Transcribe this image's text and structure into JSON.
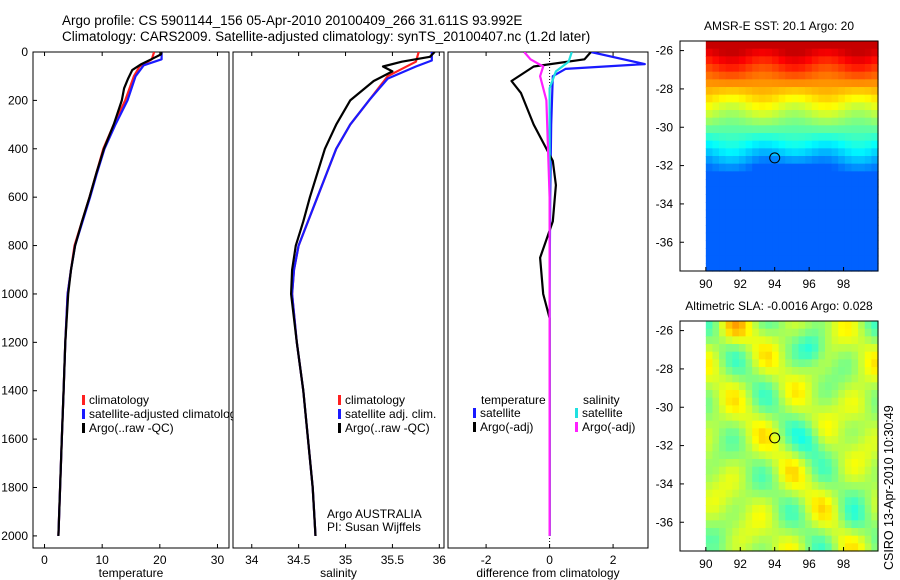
{
  "title_line1": "Argo profile: CS 5901144_156 05-Apr-2010 20100409_266 31.611S 93.992E",
  "title_line2": "Climatology: CARS2009. Satellite-adjusted climatology: synTS_20100407.nc (1.2d later)",
  "signature": "CSIRO 13-Apr-2010 10:30:49",
  "colors": {
    "climatology": "#ff2020",
    "satellite": "#1a1aff",
    "argo": "#000000",
    "salinity_satellite": "#20e0e0",
    "salinity_argo": "#ff20ff"
  },
  "chart_data": [
    {
      "id": "temperature",
      "type": "line",
      "xlabel": "temperature",
      "ylabel": "",
      "xlim": [
        -2,
        32
      ],
      "ylim": [
        2050,
        0
      ],
      "xticks": [
        0,
        10,
        20,
        30
      ],
      "yticks": [
        0,
        200,
        400,
        600,
        800,
        1000,
        1200,
        1400,
        1600,
        1800,
        2000
      ],
      "legend": [
        "climatology",
        "satellite-adjusted climatology",
        "Argo(..raw -QC)"
      ],
      "series": [
        {
          "name": "climatology",
          "color": "#ff2020",
          "points": [
            [
              19.0,
              0
            ],
            [
              18.6,
              30
            ],
            [
              16.5,
              60
            ],
            [
              15.5,
              100
            ],
            [
              14.0,
              200
            ],
            [
              12.0,
              300
            ],
            [
              10.2,
              400
            ],
            [
              9.0,
              500
            ],
            [
              7.8,
              600
            ],
            [
              6.5,
              700
            ],
            [
              5.2,
              800
            ],
            [
              4.6,
              900
            ],
            [
              4.0,
              1000
            ],
            [
              3.6,
              1200
            ],
            [
              3.3,
              1400
            ],
            [
              3.0,
              1600
            ],
            [
              2.7,
              1800
            ],
            [
              2.4,
              2000
            ]
          ]
        },
        {
          "name": "satellite-adjusted climatology",
          "color": "#1a1aff",
          "points": [
            [
              20.3,
              0
            ],
            [
              20.3,
              30
            ],
            [
              17.2,
              55
            ],
            [
              15.8,
              100
            ],
            [
              14.4,
              200
            ],
            [
              12.3,
              300
            ],
            [
              10.4,
              400
            ],
            [
              9.1,
              500
            ],
            [
              7.9,
              600
            ],
            [
              6.6,
              700
            ],
            [
              5.3,
              800
            ],
            [
              4.6,
              900
            ],
            [
              4.0,
              1000
            ],
            [
              3.6,
              1200
            ],
            [
              3.3,
              1400
            ],
            [
              3.0,
              1600
            ],
            [
              2.7,
              1800
            ],
            [
              2.4,
              2000
            ]
          ]
        },
        {
          "name": "Argo(..raw -QC)",
          "color": "#000000",
          "points": [
            [
              20.3,
              0
            ],
            [
              20.2,
              10
            ],
            [
              18.5,
              30
            ],
            [
              16.8,
              50
            ],
            [
              15.2,
              75
            ],
            [
              14.5,
              110
            ],
            [
              13.8,
              150
            ],
            [
              13.4,
              200
            ],
            [
              12.0,
              300
            ],
            [
              10.3,
              400
            ],
            [
              9.0,
              500
            ],
            [
              7.8,
              600
            ],
            [
              6.5,
              700
            ],
            [
              5.3,
              800
            ],
            [
              4.6,
              900
            ],
            [
              4.1,
              1000
            ],
            [
              3.6,
              1200
            ],
            [
              3.3,
              1400
            ],
            [
              3.0,
              1600
            ],
            [
              2.7,
              1800
            ],
            [
              2.4,
              2000
            ]
          ]
        }
      ]
    },
    {
      "id": "salinity",
      "type": "line",
      "xlabel": "salinity",
      "xlim": [
        33.8,
        36.05
      ],
      "ylim": [
        2050,
        0
      ],
      "xticks": [
        34,
        34.5,
        35,
        35.5,
        36
      ],
      "xticklabels": [
        "34",
        "34.5",
        "35",
        "35.5",
        "36"
      ],
      "legend": [
        "climatology",
        "satellite adj. clim.",
        "Argo(..raw -QC)"
      ],
      "annotation": [
        "Argo AUSTRALIA",
        "PI: Susan Wijffels"
      ],
      "series": [
        {
          "name": "climatology",
          "color": "#ff2020",
          "points": [
            [
              35.78,
              0
            ],
            [
              35.75,
              40
            ],
            [
              35.45,
              100
            ],
            [
              35.25,
              200
            ],
            [
              35.05,
              300
            ],
            [
              34.9,
              400
            ],
            [
              34.8,
              500
            ],
            [
              34.7,
              600
            ],
            [
              34.6,
              700
            ],
            [
              34.5,
              800
            ],
            [
              34.45,
              900
            ],
            [
              34.43,
              1000
            ],
            [
              34.48,
              1200
            ],
            [
              34.55,
              1400
            ],
            [
              34.6,
              1600
            ],
            [
              34.65,
              1800
            ],
            [
              34.68,
              2000
            ]
          ]
        },
        {
          "name": "satellite adj. clim.",
          "color": "#1a1aff",
          "points": [
            [
              35.92,
              0
            ],
            [
              35.92,
              35
            ],
            [
              35.75,
              60
            ],
            [
              35.45,
              110
            ],
            [
              35.25,
              200
            ],
            [
              35.05,
              300
            ],
            [
              34.9,
              400
            ],
            [
              34.8,
              500
            ],
            [
              34.7,
              600
            ],
            [
              34.6,
              700
            ],
            [
              34.5,
              800
            ],
            [
              34.45,
              900
            ],
            [
              34.43,
              1000
            ],
            [
              34.48,
              1200
            ],
            [
              34.55,
              1400
            ],
            [
              34.6,
              1600
            ],
            [
              34.65,
              1800
            ],
            [
              34.68,
              2000
            ]
          ]
        },
        {
          "name": "Argo(..raw -QC)",
          "color": "#000000",
          "points": [
            [
              35.95,
              0
            ],
            [
              35.9,
              20
            ],
            [
              35.6,
              40
            ],
            [
              35.4,
              60
            ],
            [
              35.5,
              80
            ],
            [
              35.3,
              120
            ],
            [
              35.05,
              200
            ],
            [
              34.9,
              300
            ],
            [
              34.78,
              400
            ],
            [
              34.7,
              500
            ],
            [
              34.62,
              600
            ],
            [
              34.55,
              700
            ],
            [
              34.47,
              800
            ],
            [
              34.43,
              900
            ],
            [
              34.42,
              1000
            ],
            [
              34.48,
              1200
            ],
            [
              34.55,
              1400
            ],
            [
              34.6,
              1600
            ],
            [
              34.65,
              1800
            ],
            [
              34.68,
              2000
            ]
          ]
        }
      ]
    },
    {
      "id": "difference",
      "type": "line",
      "xlabel": "difference from climatology",
      "xlim": [
        -3.2,
        3.1
      ],
      "ylim": [
        2050,
        0
      ],
      "xticks": [
        -2,
        0,
        2
      ],
      "legend_groups": [
        {
          "title": "temperature",
          "items": [
            "satellite",
            "Argo(-adj)"
          ]
        },
        {
          "title": "salinity",
          "items": [
            "satellite",
            "Argo(-adj)"
          ]
        }
      ],
      "series": [
        {
          "name": "temperature satellite",
          "color": "#1a1aff",
          "points": [
            [
              1.3,
              0
            ],
            [
              3.0,
              50
            ],
            [
              0.5,
              70
            ],
            [
              0.1,
              100
            ],
            [
              0.05,
              300
            ],
            [
              0.02,
              600
            ],
            [
              0,
              1000
            ],
            [
              0,
              2000
            ]
          ]
        },
        {
          "name": "temperature Argo(-adj)",
          "color": "#000000",
          "points": [
            [
              1.3,
              0
            ],
            [
              1.1,
              30
            ],
            [
              -0.5,
              60
            ],
            [
              -1.2,
              120
            ],
            [
              -0.9,
              170
            ],
            [
              -0.5,
              300
            ],
            [
              0.1,
              450
            ],
            [
              0.2,
              550
            ],
            [
              0.1,
              700
            ],
            [
              -0.3,
              850
            ],
            [
              -0.2,
              1000
            ],
            [
              0,
              1100
            ],
            [
              0,
              2000
            ]
          ]
        },
        {
          "name": "salinity satellite",
          "color": "#20e0e0",
          "points": [
            [
              0.7,
              0
            ],
            [
              0.6,
              40
            ],
            [
              0.2,
              80
            ],
            [
              0,
              150
            ],
            [
              0,
              300
            ],
            [
              0,
              600
            ],
            [
              0,
              2000
            ]
          ]
        },
        {
          "name": "salinity Argo(-adj)",
          "color": "#ff20ff",
          "points": [
            [
              -0.8,
              0
            ],
            [
              -0.6,
              30
            ],
            [
              -0.2,
              60
            ],
            [
              -0.3,
              100
            ],
            [
              -0.1,
              200
            ],
            [
              -0.05,
              400
            ],
            [
              0,
              600
            ],
            [
              0,
              2000
            ]
          ]
        }
      ]
    },
    {
      "id": "sst_map",
      "type": "heatmap",
      "title": "AMSR-E SST: 20.1  Argo: 20",
      "xlim": [
        88.5,
        100
      ],
      "ylim": [
        -37.5,
        -25.5
      ],
      "data_extent": {
        "lon": [
          90,
          100
        ],
        "lat": [
          -37.5,
          -25.5
        ]
      },
      "xticks": [
        90,
        92,
        94,
        96,
        98
      ],
      "yticks": [
        -26,
        -28,
        -30,
        -32,
        -34,
        -36
      ],
      "marker": {
        "lon": 94,
        "lat": -31.6
      }
    },
    {
      "id": "sla_map",
      "type": "heatmap",
      "title": "Altimetric SLA: -0.0016  Argo: 0.028",
      "xlim": [
        88.5,
        100
      ],
      "ylim": [
        -37.5,
        -25.5
      ],
      "data_extent": {
        "lon": [
          90,
          100
        ],
        "lat": [
          -37.5,
          -25.5
        ]
      },
      "xticks": [
        90,
        92,
        94,
        96,
        98
      ],
      "yticks": [
        -26,
        -28,
        -30,
        -32,
        -34,
        -36
      ],
      "marker": {
        "lon": 94,
        "lat": -31.6
      }
    }
  ]
}
